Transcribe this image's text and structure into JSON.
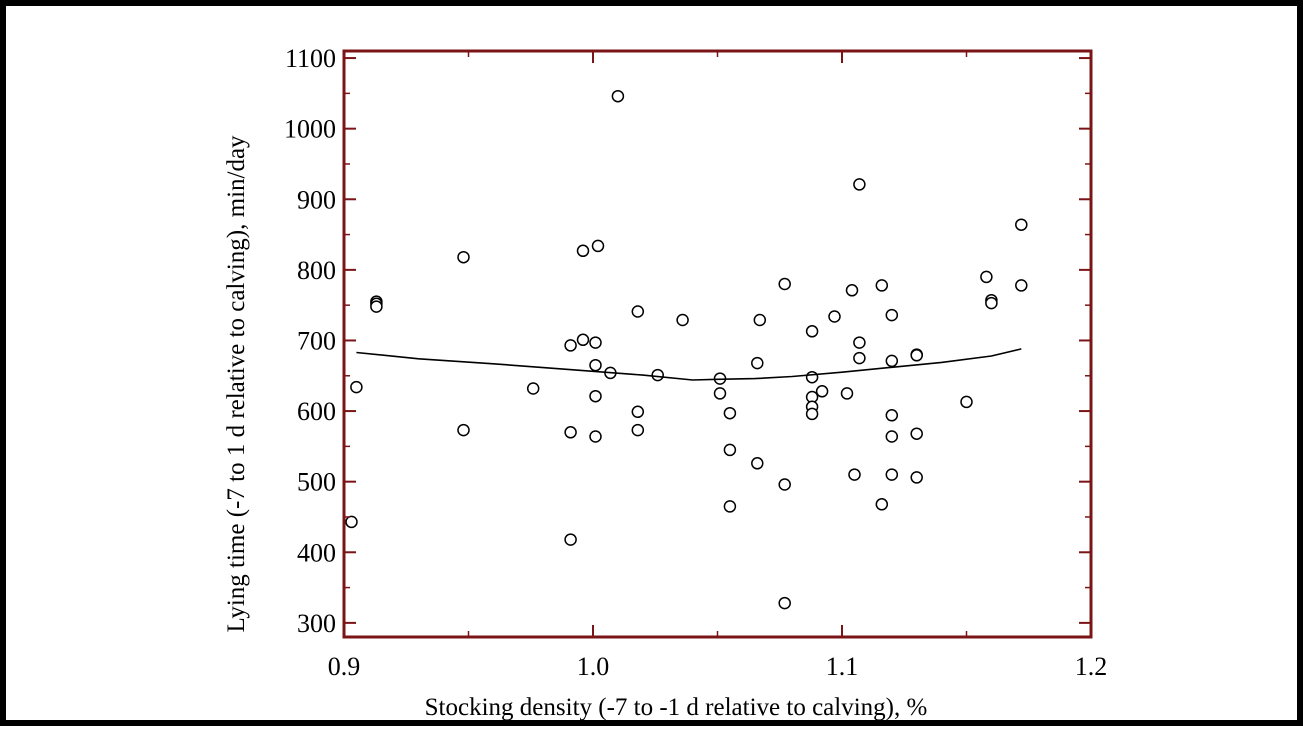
{
  "chart_data": {
    "type": "scatter",
    "title": "",
    "xlabel": "Stocking density (-7 to -1 d relative to calving), %",
    "ylabel": "Lying time (-7 to 1 d relative to calving), min/day",
    "xlim": [
      0.9,
      1.2
    ],
    "ylim": [
      280,
      1110
    ],
    "xticks": [
      0.9,
      1.0,
      1.1,
      1.2
    ],
    "xtick_labels": [
      "0.9",
      "1.0",
      "1.1",
      "1.2"
    ],
    "yticks": [
      300,
      400,
      500,
      600,
      700,
      800,
      900,
      1000,
      1100
    ],
    "ytick_labels": [
      "300",
      "400",
      "500",
      "600",
      "700",
      "800",
      "900",
      "1000",
      "1100"
    ],
    "grid": false,
    "legend": "none",
    "colors": {
      "axis": "#7b1416",
      "marker": "#000000",
      "line": "#000000",
      "border": "#000000"
    },
    "series": [
      {
        "kind": "points",
        "marker": "open-circle",
        "points": [
          [
            0.903,
            443
          ],
          [
            0.905,
            634
          ],
          [
            0.913,
            755
          ],
          [
            0.913,
            752
          ],
          [
            0.913,
            748
          ],
          [
            0.948,
            818
          ],
          [
            0.948,
            573
          ],
          [
            0.976,
            632
          ],
          [
            0.991,
            693
          ],
          [
            0.991,
            570
          ],
          [
            0.991,
            418
          ],
          [
            0.996,
            701
          ],
          [
            0.996,
            827
          ],
          [
            1.001,
            697
          ],
          [
            1.001,
            665
          ],
          [
            1.001,
            621
          ],
          [
            1.001,
            564
          ],
          [
            1.002,
            834
          ],
          [
            1.007,
            654
          ],
          [
            1.01,
            1046
          ],
          [
            1.018,
            741
          ],
          [
            1.018,
            599
          ],
          [
            1.018,
            573
          ],
          [
            1.026,
            651
          ],
          [
            1.036,
            729
          ],
          [
            1.051,
            646
          ],
          [
            1.051,
            625
          ],
          [
            1.055,
            597
          ],
          [
            1.055,
            545
          ],
          [
            1.055,
            465
          ],
          [
            1.066,
            668
          ],
          [
            1.066,
            526
          ],
          [
            1.067,
            729
          ],
          [
            1.077,
            780
          ],
          [
            1.077,
            496
          ],
          [
            1.077,
            328
          ],
          [
            1.088,
            713
          ],
          [
            1.088,
            648
          ],
          [
            1.088,
            620
          ],
          [
            1.088,
            606
          ],
          [
            1.088,
            596
          ],
          [
            1.092,
            628
          ],
          [
            1.097,
            734
          ],
          [
            1.102,
            625
          ],
          [
            1.104,
            771
          ],
          [
            1.105,
            510
          ],
          [
            1.107,
            921
          ],
          [
            1.107,
            697
          ],
          [
            1.107,
            675
          ],
          [
            1.116,
            778
          ],
          [
            1.116,
            468
          ],
          [
            1.12,
            736
          ],
          [
            1.12,
            671
          ],
          [
            1.12,
            594
          ],
          [
            1.12,
            564
          ],
          [
            1.12,
            510
          ],
          [
            1.13,
            680
          ],
          [
            1.13,
            679
          ],
          [
            1.13,
            568
          ],
          [
            1.13,
            506
          ],
          [
            1.15,
            613
          ],
          [
            1.158,
            790
          ],
          [
            1.16,
            757
          ],
          [
            1.16,
            753
          ],
          [
            1.172,
            864
          ],
          [
            1.172,
            778
          ]
        ]
      },
      {
        "kind": "line",
        "points": [
          [
            0.905,
            683
          ],
          [
            0.93,
            674
          ],
          [
            0.96,
            667
          ],
          [
            0.99,
            659
          ],
          [
            1.02,
            651
          ],
          [
            1.04,
            644
          ],
          [
            1.05,
            645
          ],
          [
            1.065,
            646
          ],
          [
            1.08,
            649
          ],
          [
            1.1,
            655
          ],
          [
            1.12,
            662
          ],
          [
            1.14,
            669
          ],
          [
            1.16,
            678
          ],
          [
            1.172,
            688
          ]
        ]
      }
    ]
  }
}
